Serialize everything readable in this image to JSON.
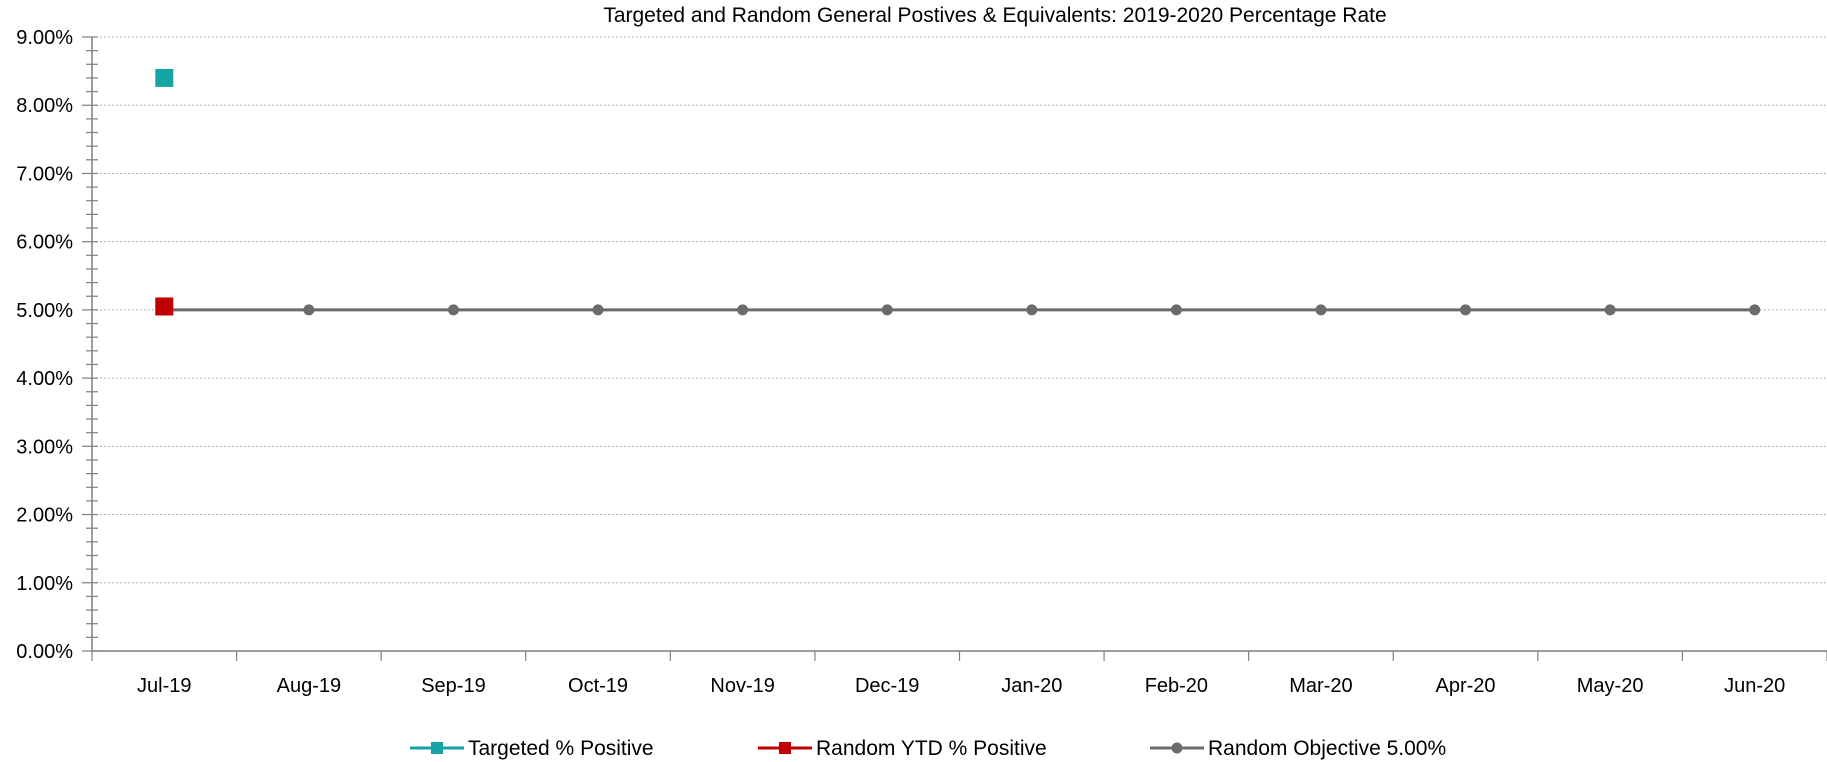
{
  "chart_data": {
    "type": "line",
    "title": "Targeted and Random General Postives & Equivalents: 2019-2020 Percentage Rate",
    "xlabel": "",
    "ylabel": "",
    "categories": [
      "Jul-19",
      "Aug-19",
      "Sep-19",
      "Oct-19",
      "Nov-19",
      "Dec-19",
      "Jan-20",
      "Feb-20",
      "Mar-20",
      "Apr-20",
      "May-20",
      "Jun-20"
    ],
    "ylim": [
      0,
      9
    ],
    "yticks": [
      "0.00%",
      "1.00%",
      "2.00%",
      "3.00%",
      "4.00%",
      "5.00%",
      "6.00%",
      "7.00%",
      "8.00%",
      "9.00%"
    ],
    "grid": true,
    "legend_position": "bottom",
    "series": [
      {
        "name": "Targeted % Positive",
        "color": "#14a6a6",
        "marker": "square",
        "values": [
          8.4,
          null,
          null,
          null,
          null,
          null,
          null,
          null,
          null,
          null,
          null,
          null
        ]
      },
      {
        "name": "Random YTD % Positive",
        "color": "#c00000",
        "marker": "square",
        "values": [
          5.05,
          null,
          null,
          null,
          null,
          null,
          null,
          null,
          null,
          null,
          null,
          null
        ]
      },
      {
        "name": "Random Objective 5.00%",
        "color": "#6b6b6b",
        "marker": "circle",
        "values": [
          5.0,
          5.0,
          5.0,
          5.0,
          5.0,
          5.0,
          5.0,
          5.0,
          5.0,
          5.0,
          5.0,
          5.0
        ]
      }
    ]
  }
}
